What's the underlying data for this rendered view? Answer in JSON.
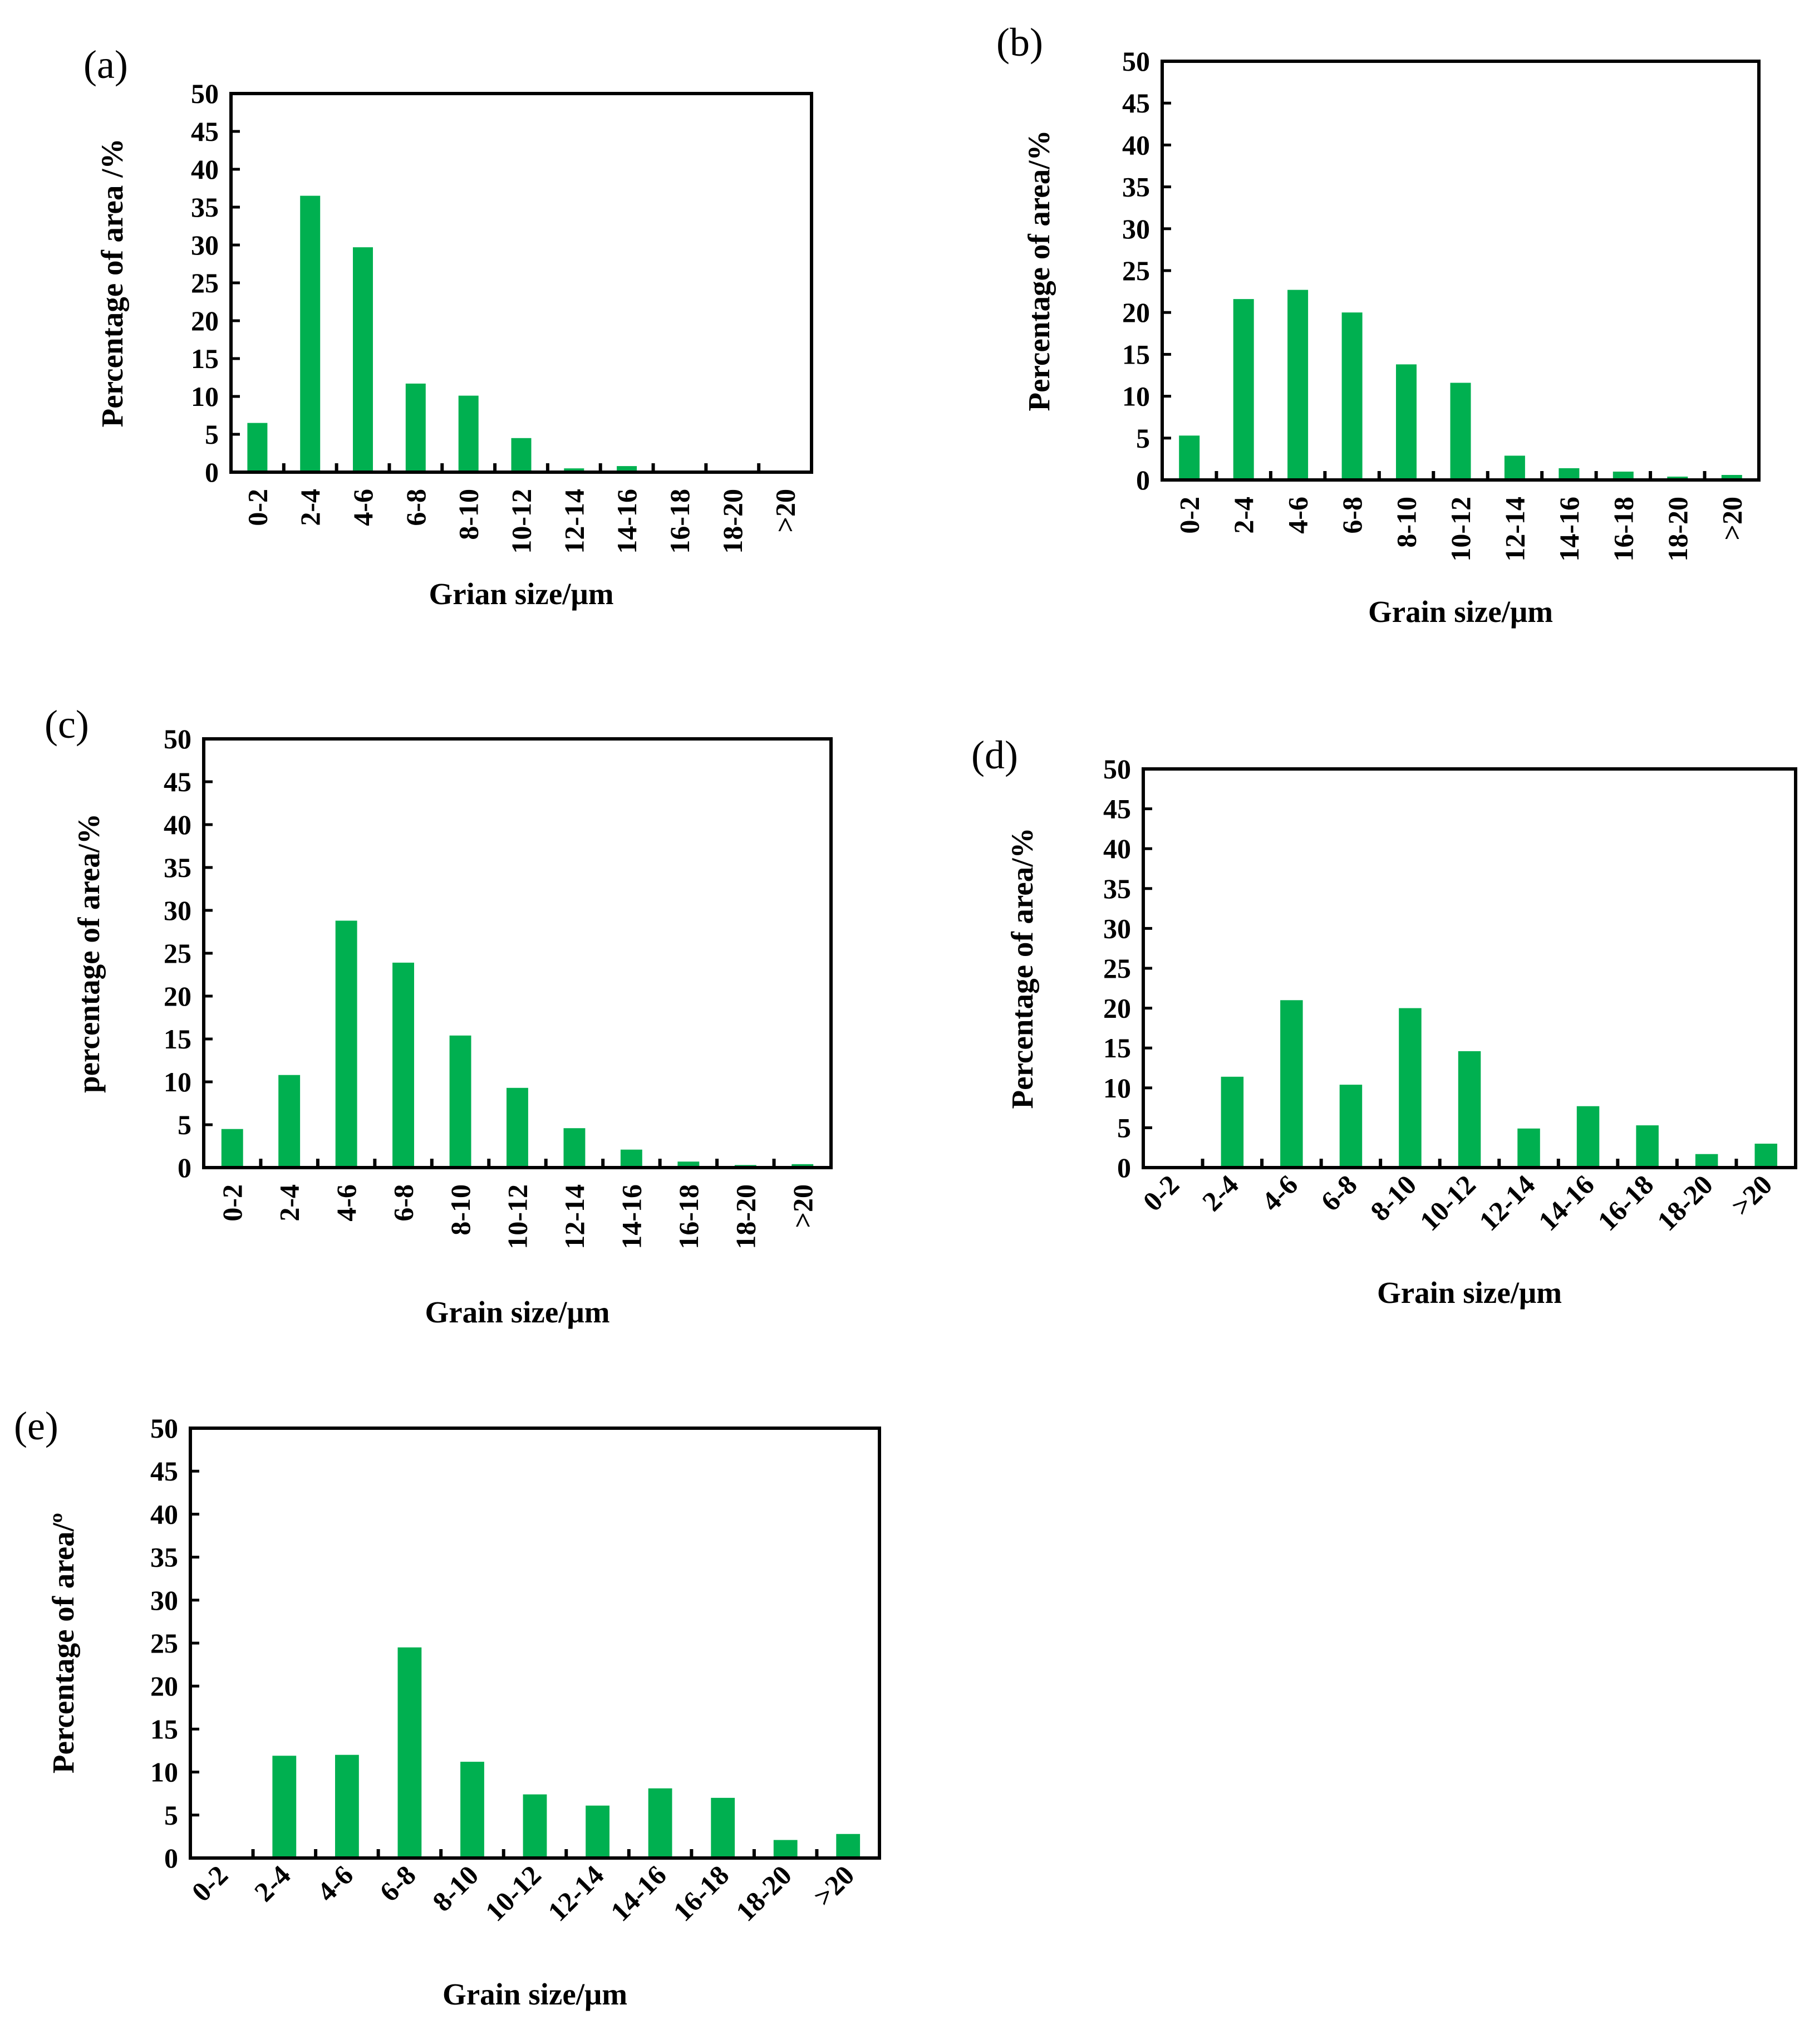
{
  "colors": {
    "bar": "#00b050",
    "axis": "#000000"
  },
  "chart_data": [
    {
      "type": "bar",
      "panel": "(a)",
      "categories": [
        "0-2",
        "2-4",
        "4-6",
        "6-8",
        "8-10",
        "10-12",
        "12-14",
        "14-16",
        "16-18",
        "18-20",
        ">20"
      ],
      "values": [
        6.5,
        36.5,
        29.7,
        11.7,
        10.1,
        4.5,
        0.5,
        0.8,
        0,
        0,
        0
      ],
      "xlabel": "Grian size/μm",
      "ylabel": "Percentage of area /%",
      "ylim": [
        0,
        50
      ],
      "yticks": [
        0,
        5,
        10,
        15,
        20,
        25,
        30,
        35,
        40,
        45,
        50
      ]
    },
    {
      "type": "bar",
      "panel": "(b)",
      "categories": [
        "0-2",
        "2-4",
        "4-6",
        "6-8",
        "8-10",
        "10-12",
        "12-14",
        "14-16",
        "16-18",
        "18-20",
        ">20"
      ],
      "values": [
        5.3,
        21.6,
        22.7,
        20.0,
        13.8,
        11.6,
        2.9,
        1.4,
        1.0,
        0.4,
        0.6
      ],
      "xlabel": "Grain size/μm",
      "ylabel": "Percentage of area/%",
      "ylim": [
        0,
        50
      ],
      "yticks": [
        0,
        5,
        10,
        15,
        20,
        25,
        30,
        35,
        40,
        45,
        50
      ]
    },
    {
      "type": "bar",
      "panel": "(c)",
      "categories": [
        "0-2",
        "2-4",
        "4-6",
        "6-8",
        "8-10",
        "10-12",
        "12-14",
        "14-16",
        "16-18",
        "18-20",
        ">20"
      ],
      "values": [
        4.5,
        10.8,
        28.8,
        23.9,
        15.4,
        9.3,
        4.6,
        2.1,
        0.7,
        0.3,
        0.4
      ],
      "xlabel": "Grain size/μm",
      "ylabel": "percentage of area/%",
      "ylim": [
        0,
        50
      ],
      "yticks": [
        0,
        5,
        10,
        15,
        20,
        25,
        30,
        35,
        40,
        45,
        50
      ]
    },
    {
      "type": "bar",
      "panel": "(d)",
      "categories": [
        "0-2",
        "2-4",
        "4-6",
        "6-8",
        "8-10",
        "10-12",
        "12-14",
        "14-16",
        "16-18",
        "18-20",
        ">20"
      ],
      "values": [
        0,
        11.4,
        21.0,
        10.4,
        20.0,
        14.6,
        4.9,
        7.7,
        5.3,
        1.7,
        3.0
      ],
      "xlabel": "Grain size/μm",
      "ylabel": "Percentage of area/%",
      "ylim": [
        0,
        50
      ],
      "yticks": [
        0,
        5,
        10,
        15,
        20,
        25,
        30,
        35,
        40,
        45,
        50
      ]
    },
    {
      "type": "bar",
      "panel": "(e)",
      "categories": [
        "0-2",
        "2-4",
        "4-6",
        "6-8",
        "8-10",
        "10-12",
        "12-14",
        "14-16",
        "16-18",
        "18-20",
        ">20"
      ],
      "values": [
        0,
        11.9,
        12.0,
        24.5,
        11.2,
        7.4,
        6.1,
        8.1,
        7.0,
        2.1,
        2.8
      ],
      "xlabel": "Grain size/μm",
      "ylabel": "Percentage of area/º",
      "ylim": [
        0,
        50
      ],
      "yticks": [
        0,
        5,
        10,
        15,
        20,
        25,
        30,
        35,
        40,
        45,
        50
      ]
    }
  ]
}
